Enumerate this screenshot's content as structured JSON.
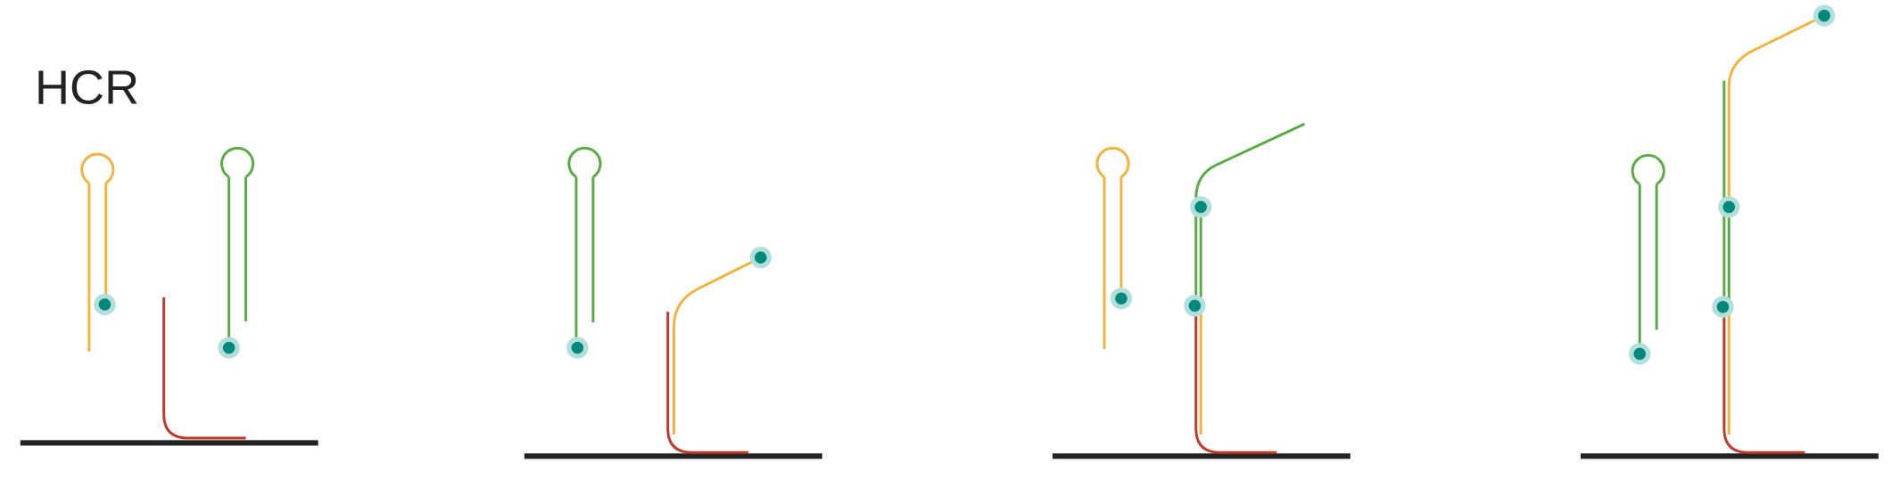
{
  "title": "HCR"
}
